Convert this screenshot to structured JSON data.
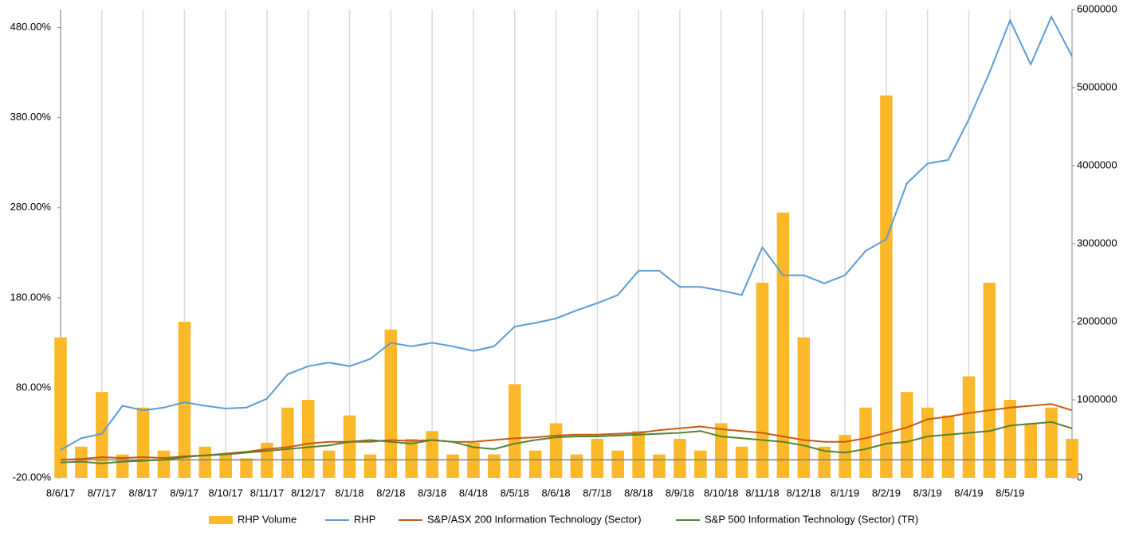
{
  "chart_data": {
    "type": "line",
    "categories": [
      "8/6/17",
      null,
      "8/7/17",
      null,
      "8/8/17",
      null,
      "8/9/17",
      null,
      "8/10/17",
      null,
      "8/11/17",
      null,
      "8/12/17",
      null,
      "8/1/18",
      null,
      "8/2/18",
      null,
      "8/3/18",
      null,
      "8/4/18",
      null,
      "8/5/18",
      null,
      "8/6/18",
      null,
      "8/7/18",
      null,
      "8/8/18",
      null,
      "8/9/18",
      null,
      "8/10/18",
      null,
      "8/11/18",
      null,
      "8/12/18",
      null,
      "8/1/19",
      null,
      "8/2/19",
      null,
      "8/3/19",
      null,
      "8/4/19",
      null,
      "8/5/19",
      null,
      null,
      null
    ],
    "series": [
      {
        "name": "RHP Volume",
        "type": "bar",
        "axis": "y2",
        "color": "#fbb829",
        "values": [
          1800000,
          400000,
          1100000,
          300000,
          900000,
          350000,
          2000000,
          400000,
          300000,
          250000,
          450000,
          900000,
          1000000,
          350000,
          800000,
          300000,
          1900000,
          500000,
          600000,
          300000,
          450000,
          300000,
          1200000,
          350000,
          700000,
          300000,
          500000,
          350000,
          600000,
          300000,
          500000,
          350000,
          700000,
          400000,
          2500000,
          3400000,
          1800000,
          400000,
          550000,
          900000,
          4900000,
          1100000,
          900000,
          800000,
          1300000,
          2500000,
          1000000,
          700000,
          900000,
          500000
        ]
      },
      {
        "name": "RHP",
        "type": "line",
        "color": "#5b9bd5",
        "values": [
          11,
          24,
          29,
          60,
          55,
          58,
          64,
          60,
          57,
          58,
          68,
          95,
          104,
          108,
          104,
          112,
          130,
          126,
          130,
          126,
          121,
          126,
          148,
          152,
          157,
          166,
          174,
          183,
          210,
          210,
          192,
          192,
          188,
          183,
          236,
          205,
          205,
          196,
          205,
          232,
          245,
          307,
          329,
          333,
          378,
          430,
          488,
          439,
          492,
          448
        ]
      },
      {
        "name": "S&P/ASX 200 Information Technology (Sector)",
        "type": "line",
        "color": "#c55a11",
        "values": [
          0,
          1,
          3,
          2,
          3,
          2,
          4,
          5,
          7,
          9,
          12,
          14,
          18,
          20,
          20,
          20,
          22,
          21,
          22,
          20,
          20,
          22,
          24,
          25,
          27,
          28,
          28,
          29,
          30,
          33,
          35,
          37,
          34,
          32,
          30,
          26,
          22,
          20,
          20,
          24,
          30,
          36,
          45,
          48,
          52,
          55,
          58,
          60,
          62,
          55
        ]
      },
      {
        "name": "S&P 500 Information Technology (Sector) (TR)",
        "type": "line",
        "color": "#548235",
        "values": [
          -3,
          -2,
          -4,
          -2,
          -1,
          0,
          3,
          5,
          6,
          8,
          10,
          12,
          14,
          16,
          20,
          22,
          20,
          18,
          22,
          20,
          14,
          12,
          18,
          22,
          25,
          26,
          26,
          27,
          28,
          29,
          30,
          32,
          26,
          24,
          22,
          20,
          16,
          10,
          8,
          12,
          18,
          20,
          26,
          28,
          30,
          32,
          38,
          40,
          42,
          35
        ]
      }
    ],
    "ylim": [
      -20,
      500
    ],
    "yticks": [
      {
        "value": -20,
        "label": "-20.00%"
      },
      {
        "value": 80,
        "label": "80.00%"
      },
      {
        "value": 180,
        "label": "180.00%"
      },
      {
        "value": 280,
        "label": "280.00%"
      },
      {
        "value": 380,
        "label": "380.00%"
      },
      {
        "value": 480,
        "label": "480.00%"
      }
    ],
    "y2lim": [
      0,
      6000000
    ],
    "y2ticks": [
      0,
      1000000,
      2000000,
      3000000,
      4000000,
      5000000,
      6000000
    ],
    "grid": true
  }
}
